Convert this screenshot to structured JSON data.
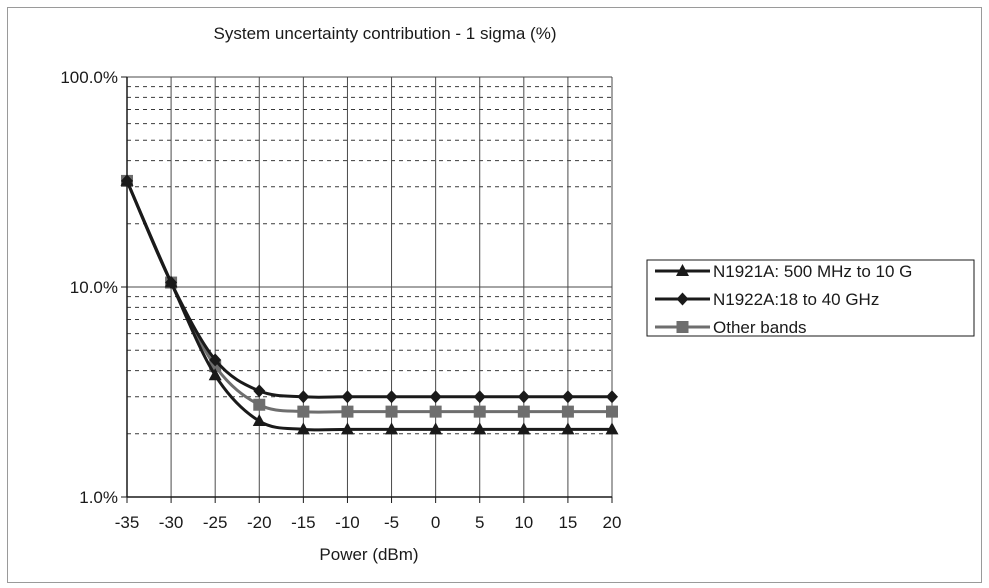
{
  "chart_data": {
    "type": "line",
    "title": "System uncertainty contribution - 1 sigma (%)",
    "xlabel": "Power (dBm)",
    "ylabel": "",
    "x": [
      -35,
      -30,
      -25,
      -20,
      -15,
      -10,
      -5,
      0,
      5,
      10,
      15,
      20
    ],
    "x_ticks": [
      "-35",
      "-30",
      "-25",
      "-20",
      "-15",
      "-10",
      "-5",
      "0",
      "5",
      "10",
      "15",
      "20"
    ],
    "xlim": [
      -35,
      20
    ],
    "ylim": [
      1.0,
      100.0
    ],
    "y_scale": "log",
    "y_ticks": [
      {
        "value": 1.0,
        "label": "1.0%"
      },
      {
        "value": 10.0,
        "label": "10.0%"
      },
      {
        "value": 100.0,
        "label": "100.0%"
      }
    ],
    "grid": true,
    "legend_position": "right",
    "series": [
      {
        "name": "N1921A: 500 MHz to 10 G",
        "marker": "triangle",
        "color": "#1a1a1a",
        "values": [
          32.0,
          10.5,
          3.8,
          2.3,
          2.1,
          2.1,
          2.1,
          2.1,
          2.1,
          2.1,
          2.1,
          2.1
        ]
      },
      {
        "name": "N1922A:18 to 40 GHz",
        "marker": "diamond",
        "color": "#1a1a1a",
        "values": [
          32.0,
          10.5,
          4.5,
          3.2,
          3.0,
          3.0,
          3.0,
          3.0,
          3.0,
          3.0,
          3.0,
          3.0
        ]
      },
      {
        "name": "Other bands",
        "marker": "square",
        "color": "#6e6e6e",
        "values": [
          32.0,
          10.5,
          4.2,
          2.75,
          2.55,
          2.55,
          2.55,
          2.55,
          2.55,
          2.55,
          2.55,
          2.55
        ]
      }
    ]
  }
}
